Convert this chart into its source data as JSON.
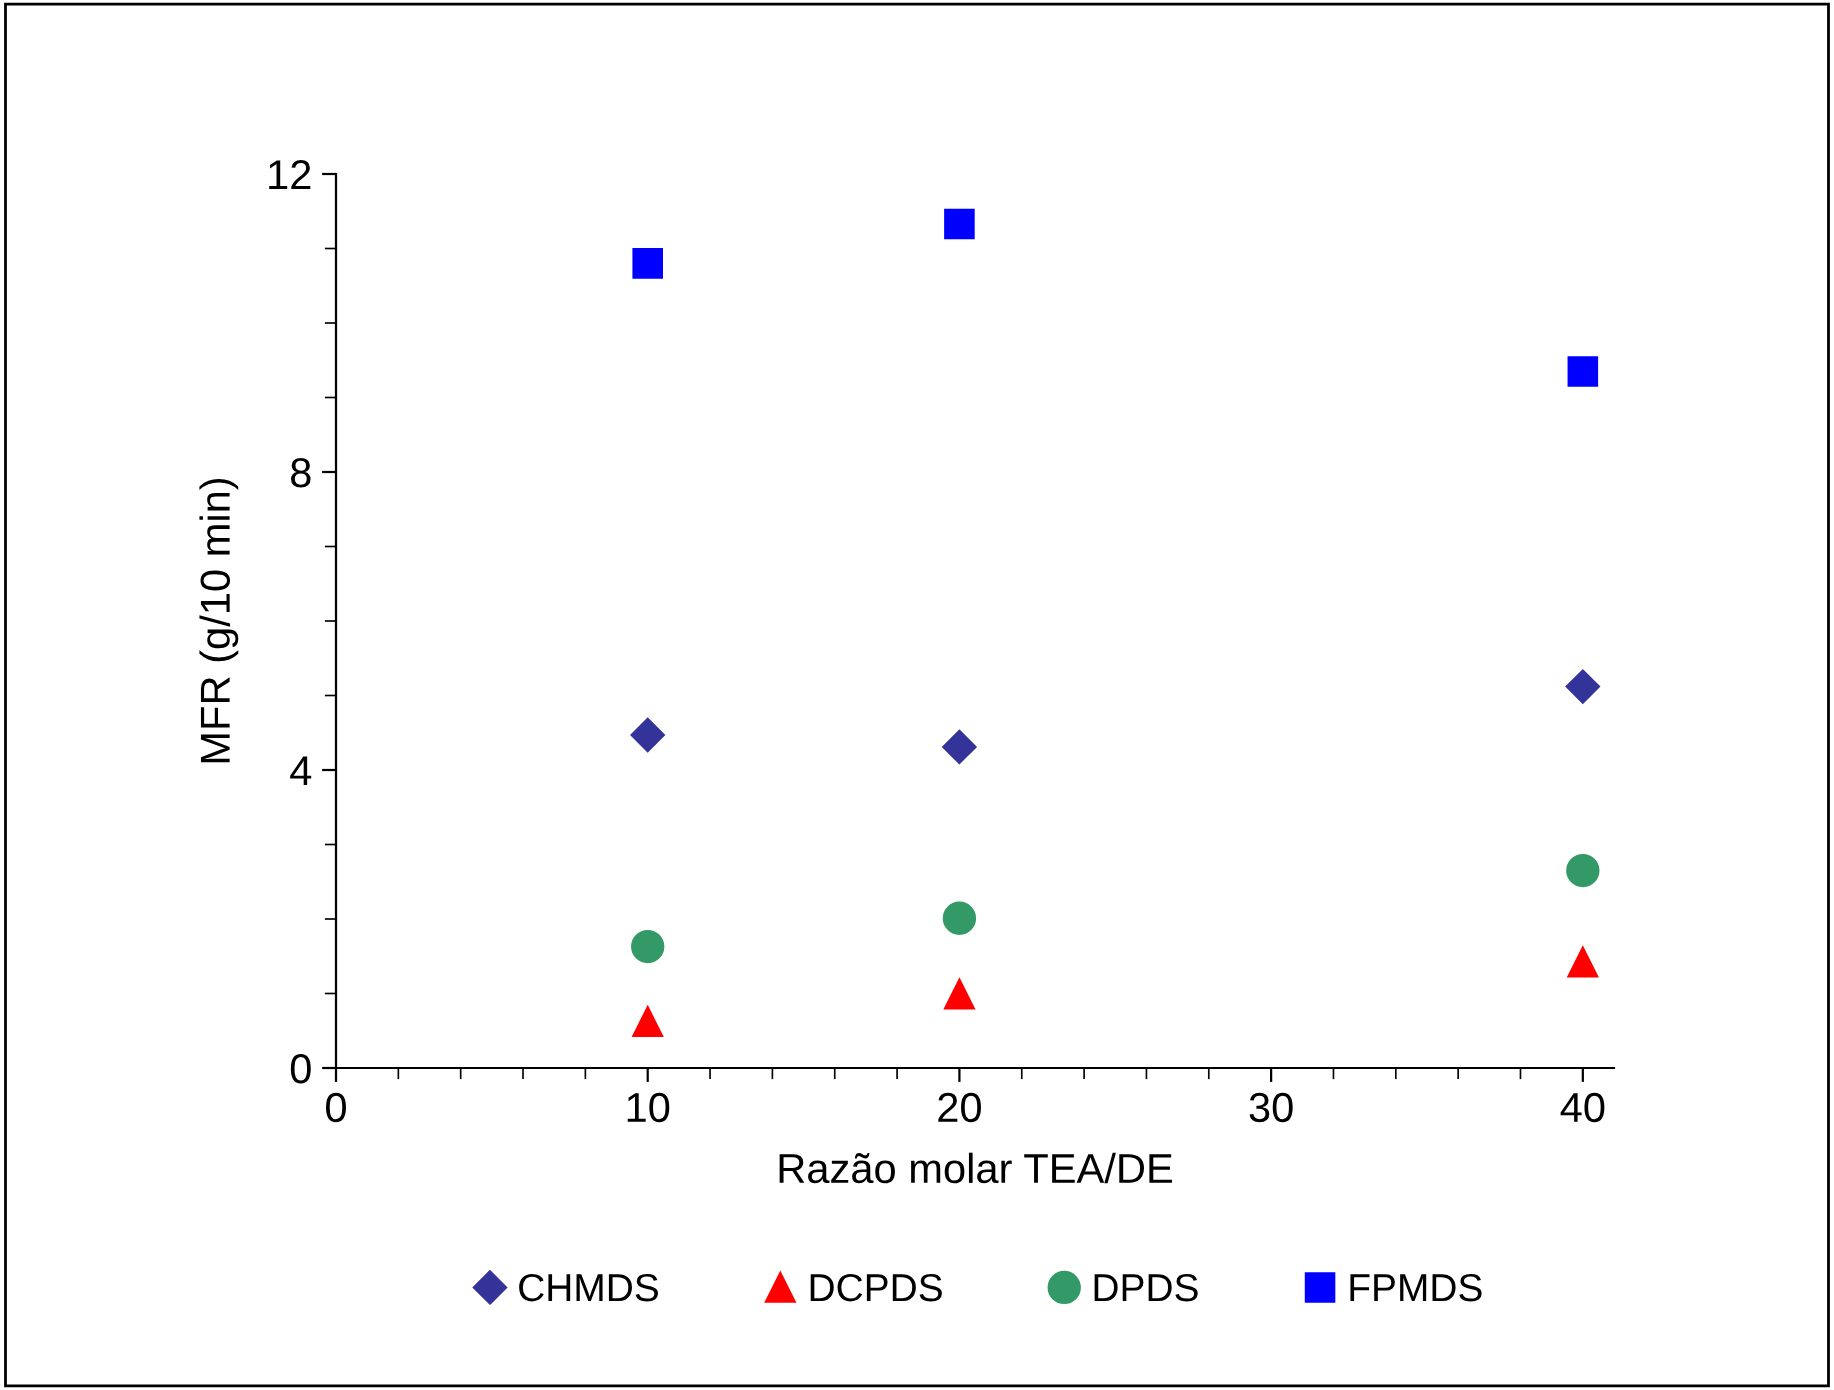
{
  "chart_data": {
    "type": "scatter",
    "xlabel": "Razão molar TEA/DE",
    "ylabel": "MFR (g/10 min)",
    "xlim": [
      0,
      41
    ],
    "xticks": [
      0,
      10,
      20,
      30,
      40
    ],
    "ylim": [
      0,
      12
    ],
    "yticks": [
      0,
      4,
      8,
      12
    ],
    "grid": false,
    "legend": "bottom",
    "series": [
      {
        "name": "CHMDS",
        "color": "#333399",
        "marker": "diamond",
        "x": [
          10,
          20,
          40
        ],
        "values": [
          4.47,
          4.31,
          5.12
        ]
      },
      {
        "name": "DCPDS",
        "color": "#ff0000",
        "marker": "triangle",
        "x": [
          10,
          20,
          40
        ],
        "values": [
          0.62,
          0.99,
          1.42
        ]
      },
      {
        "name": "DPDS",
        "color": "#339966",
        "marker": "circle",
        "x": [
          10,
          20,
          40
        ],
        "values": [
          1.63,
          2.01,
          2.65
        ]
      },
      {
        "name": "FPMDS",
        "color": "#0000ff",
        "marker": "square",
        "x": [
          10,
          20,
          40
        ],
        "values": [
          10.8,
          11.33,
          9.35
        ]
      }
    ]
  }
}
